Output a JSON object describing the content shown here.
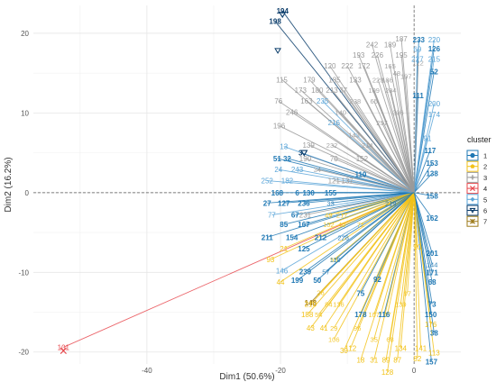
{
  "chart_data": {
    "type": "scatter",
    "title": "",
    "xlabel": "Dim1 (50.6%)",
    "ylabel": "Dim2 (16.2%)",
    "xlim": [
      -57,
      7
    ],
    "ylim": [
      -21.5,
      23.5
    ],
    "x_ticks": [
      -40,
      -20,
      0
    ],
    "y_ticks": [
      -20,
      -10,
      0,
      10,
      20
    ],
    "grid": true,
    "legend_position": "right",
    "legend_title": "cluster",
    "legend": [
      "1",
      "2",
      "3",
      "4",
      "5",
      "6",
      "7"
    ],
    "colors": {
      "1": "#1f78b4",
      "2": "#f2c218",
      "3": "#9a9a9a",
      "4": "#e7484d",
      "5": "#5aa5d8",
      "6": "#0b3d6b",
      "7": "#9e7b1a"
    },
    "points": [
      {
        "label": "194",
        "x": -19.7,
        "y": 22.8,
        "cluster": "6"
      },
      {
        "label": "198",
        "x": -20.8,
        "y": 21.5,
        "cluster": "6"
      },
      {
        "label": "101",
        "x": -52.5,
        "y": -19.4,
        "cluster": "4"
      },
      {
        "label": "148",
        "x": -15.5,
        "y": -13.8,
        "cluster": "7"
      },
      {
        "label": "3",
        "x": -17.0,
        "y": 5.0,
        "cluster": "6"
      },
      {
        "label": "51",
        "x": -20.5,
        "y": 4.3,
        "cluster": "1"
      },
      {
        "label": "32",
        "x": -19.0,
        "y": 4.3,
        "cluster": "1"
      },
      {
        "label": "168",
        "x": -20.5,
        "y": 0.0,
        "cluster": "1"
      },
      {
        "label": "6",
        "x": -17.5,
        "y": 0.0,
        "cluster": "1"
      },
      {
        "label": "130",
        "x": -15.8,
        "y": 0.0,
        "cluster": "1"
      },
      {
        "label": "155",
        "x": -12.5,
        "y": 0.0,
        "cluster": "1"
      },
      {
        "label": "27",
        "x": -22.0,
        "y": -1.3,
        "cluster": "1"
      },
      {
        "label": "127",
        "x": -19.5,
        "y": -1.3,
        "cluster": "1"
      },
      {
        "label": "236",
        "x": -16.5,
        "y": -1.3,
        "cluster": "1"
      },
      {
        "label": "67",
        "x": -17.8,
        "y": -2.8,
        "cluster": "1"
      },
      {
        "label": "85",
        "x": -19.5,
        "y": -4.0,
        "cluster": "1"
      },
      {
        "label": "167",
        "x": -16.5,
        "y": -4.0,
        "cluster": "1"
      },
      {
        "label": "211",
        "x": -22.0,
        "y": -5.6,
        "cluster": "1"
      },
      {
        "label": "154",
        "x": -18.3,
        "y": -5.6,
        "cluster": "1"
      },
      {
        "label": "212",
        "x": -14.0,
        "y": -5.6,
        "cluster": "1"
      },
      {
        "label": "125",
        "x": -16.5,
        "y": -7.0,
        "cluster": "1"
      },
      {
        "label": "239",
        "x": -16.3,
        "y": -9.9,
        "cluster": "1"
      },
      {
        "label": "199",
        "x": -17.5,
        "y": -11.0,
        "cluster": "1"
      },
      {
        "label": "50",
        "x": -14.5,
        "y": -11.0,
        "cluster": "1"
      },
      {
        "label": "75",
        "x": -8.0,
        "y": -12.6,
        "cluster": "1"
      },
      {
        "label": "178",
        "x": -8.0,
        "y": -15.3,
        "cluster": "1"
      },
      {
        "label": "116",
        "x": -4.5,
        "y": -15.3,
        "cluster": "1"
      },
      {
        "label": "92",
        "x": -5.5,
        "y": -10.9,
        "cluster": "1"
      },
      {
        "label": "110",
        "x": -8.0,
        "y": 2.3,
        "cluster": "1"
      },
      {
        "label": "233",
        "x": 0.7,
        "y": 19.2,
        "cluster": "1"
      },
      {
        "label": "126",
        "x": 3.0,
        "y": 18.1,
        "cluster": "1"
      },
      {
        "label": "52",
        "x": 3.0,
        "y": 15.2,
        "cluster": "1"
      },
      {
        "label": "111",
        "x": 0.6,
        "y": 12.2,
        "cluster": "1"
      },
      {
        "label": "117",
        "x": 2.4,
        "y": 5.3,
        "cluster": "1"
      },
      {
        "label": "153",
        "x": 2.7,
        "y": 3.7,
        "cluster": "1"
      },
      {
        "label": "138",
        "x": 2.7,
        "y": 2.4,
        "cluster": "1"
      },
      {
        "label": "158",
        "x": 2.7,
        "y": -0.4,
        "cluster": "1"
      },
      {
        "label": "162",
        "x": 2.7,
        "y": -3.2,
        "cluster": "1"
      },
      {
        "label": "201",
        "x": 2.7,
        "y": -7.6,
        "cluster": "1"
      },
      {
        "label": "171",
        "x": 2.7,
        "y": -10.0,
        "cluster": "1"
      },
      {
        "label": "68",
        "x": 2.7,
        "y": -11.2,
        "cluster": "1"
      },
      {
        "label": "73",
        "x": 2.7,
        "y": -14.0,
        "cluster": "1"
      },
      {
        "label": "150",
        "x": 2.5,
        "y": -15.3,
        "cluster": "1"
      },
      {
        "label": "38",
        "x": 3.0,
        "y": -17.6,
        "cluster": "1"
      },
      {
        "label": "157",
        "x": 2.6,
        "y": -21.2,
        "cluster": "1"
      },
      {
        "label": "187",
        "x": -1.9,
        "y": 19.3,
        "cluster": "3"
      },
      {
        "label": "242",
        "x": -6.3,
        "y": 18.6,
        "cluster": "3"
      },
      {
        "label": "189",
        "x": -3.6,
        "y": 18.6,
        "cluster": "3"
      },
      {
        "label": "193",
        "x": -8.3,
        "y": 17.3,
        "cluster": "3"
      },
      {
        "label": "226",
        "x": -5.5,
        "y": 17.3,
        "cluster": "3"
      },
      {
        "label": "195",
        "x": -1.9,
        "y": 17.3,
        "cluster": "3"
      },
      {
        "label": "120",
        "x": -12.6,
        "y": 15.9,
        "cluster": "3"
      },
      {
        "label": "222",
        "x": -10.0,
        "y": 15.9,
        "cluster": "3"
      },
      {
        "label": "172",
        "x": -7.5,
        "y": 15.9,
        "cluster": "3"
      },
      {
        "label": "115",
        "x": -19.8,
        "y": 14.2,
        "cluster": "3"
      },
      {
        "label": "179",
        "x": -15.7,
        "y": 14.2,
        "cluster": "3"
      },
      {
        "label": "185",
        "x": -11.9,
        "y": 14.2,
        "cluster": "3"
      },
      {
        "label": "133",
        "x": -8.8,
        "y": 14.2,
        "cluster": "3"
      },
      {
        "label": "173",
        "x": -17.0,
        "y": 12.9,
        "cluster": "3"
      },
      {
        "label": "180",
        "x": -14.5,
        "y": 12.9,
        "cluster": "3"
      },
      {
        "label": "213",
        "x": -12.3,
        "y": 12.9,
        "cluster": "3"
      },
      {
        "label": "37",
        "x": -10.6,
        "y": 12.9,
        "cluster": "3"
      },
      {
        "label": "76",
        "x": -20.3,
        "y": 11.5,
        "cluster": "3"
      },
      {
        "label": "163",
        "x": -16.1,
        "y": 11.5,
        "cluster": "3"
      },
      {
        "label": "246",
        "x": -18.3,
        "y": 10.1,
        "cluster": "3"
      },
      {
        "label": "196",
        "x": -20.2,
        "y": 8.4,
        "cluster": "3"
      },
      {
        "label": "139",
        "x": -15.8,
        "y": 6.0,
        "cluster": "3"
      },
      {
        "label": "190",
        "x": -16.3,
        "y": 4.3,
        "cluster": "3"
      },
      {
        "label": "70",
        "x": -12.0,
        "y": 4.3,
        "cluster": "3"
      },
      {
        "label": "152",
        "x": -7.8,
        "y": 4.3,
        "cluster": "3"
      },
      {
        "label": "121",
        "x": -12.0,
        "y": 1.5,
        "cluster": "3"
      },
      {
        "label": "137",
        "x": -10.0,
        "y": 1.5,
        "cluster": "3"
      },
      {
        "label": "231",
        "x": -16.3,
        "y": -2.8,
        "cluster": "3"
      },
      {
        "label": "24",
        "x": -20.3,
        "y": 2.9,
        "cluster": "5"
      },
      {
        "label": "243",
        "x": -17.5,
        "y": 2.9,
        "cluster": "5"
      },
      {
        "label": "252",
        "x": -22.0,
        "y": 1.5,
        "cluster": "5"
      },
      {
        "label": "182",
        "x": -19.0,
        "y": 1.5,
        "cluster": "5"
      },
      {
        "label": "77",
        "x": -21.3,
        "y": -2.8,
        "cluster": "5"
      },
      {
        "label": "146",
        "x": -19.8,
        "y": -9.8,
        "cluster": "5"
      },
      {
        "label": "13",
        "x": -19.5,
        "y": 5.8,
        "cluster": "5"
      },
      {
        "label": "235",
        "x": -13.7,
        "y": 11.5,
        "cluster": "5"
      },
      {
        "label": "216",
        "x": -12.0,
        "y": 8.8,
        "cluster": "5"
      },
      {
        "label": "220",
        "x": 3.0,
        "y": 19.2,
        "cluster": "5"
      },
      {
        "label": "69",
        "x": 0.5,
        "y": 18.0,
        "cluster": "5"
      },
      {
        "label": "227",
        "x": 0.5,
        "y": 16.8,
        "cluster": "5"
      },
      {
        "label": "215",
        "x": 3.0,
        "y": 16.8,
        "cluster": "5"
      },
      {
        "label": "200",
        "x": 3.0,
        "y": 11.2,
        "cluster": "5"
      },
      {
        "label": "174",
        "x": 3.0,
        "y": 9.8,
        "cluster": "5"
      },
      {
        "label": "91",
        "x": 2.0,
        "y": 6.8,
        "cluster": "5"
      },
      {
        "label": "21",
        "x": -19.5,
        "y": -7.0,
        "cluster": "2"
      },
      {
        "label": "93",
        "x": -21.5,
        "y": -8.4,
        "cluster": "2"
      },
      {
        "label": "44",
        "x": -20.0,
        "y": -11.2,
        "cluster": "2"
      },
      {
        "label": "210",
        "x": -15.5,
        "y": -14.0,
        "cluster": "2"
      },
      {
        "label": "188",
        "x": -16.0,
        "y": -15.3,
        "cluster": "2"
      },
      {
        "label": "43",
        "x": -15.5,
        "y": -17.0,
        "cluster": "2"
      },
      {
        "label": "41",
        "x": -13.5,
        "y": -17.0,
        "cluster": "2"
      },
      {
        "label": "30",
        "x": -10.5,
        "y": -19.8,
        "cluster": "2"
      },
      {
        "label": "18",
        "x": -8.0,
        "y": -21.0,
        "cluster": "2"
      },
      {
        "label": "31",
        "x": -6.0,
        "y": -21.0,
        "cluster": "2"
      },
      {
        "label": "89",
        "x": -4.2,
        "y": -21.0,
        "cluster": "2"
      },
      {
        "label": "87",
        "x": -2.5,
        "y": -21.0,
        "cluster": "2"
      },
      {
        "label": "128",
        "x": -4.0,
        "y": -22.5,
        "cluster": "2"
      },
      {
        "label": "82",
        "x": 0.5,
        "y": -20.8,
        "cluster": "2"
      },
      {
        "label": "113",
        "x": 3.0,
        "y": -20.1,
        "cluster": "2"
      },
      {
        "label": "141",
        "x": 1.0,
        "y": -19.5,
        "cluster": "2"
      },
      {
        "label": "134",
        "x": -2.0,
        "y": -19.5,
        "cluster": "2"
      },
      {
        "label": "112",
        "x": -9.5,
        "y": -19.5,
        "cluster": "2"
      },
      {
        "label": "176",
        "x": 2.5,
        "y": -16.5,
        "cluster": "2"
      },
      {
        "label": "90",
        "x": 0.5,
        "y": -6.8,
        "cluster": "2"
      }
    ],
    "background_labels": [
      {
        "label": "122",
        "x": 0.6,
        "y": 16.3,
        "cluster": "3"
      },
      {
        "label": "165",
        "x": -3.6,
        "y": 15.9,
        "cluster": "3"
      },
      {
        "label": "48",
        "x": -2.6,
        "y": 15.0,
        "cluster": "3"
      },
      {
        "label": "197",
        "x": -1.2,
        "y": 14.6,
        "cluster": "3"
      },
      {
        "label": "229",
        "x": -5.4,
        "y": 14.2,
        "cluster": "3"
      },
      {
        "label": "186",
        "x": -4.0,
        "y": 14.2,
        "cluster": "3"
      },
      {
        "label": "109",
        "x": -6.0,
        "y": 12.9,
        "cluster": "3"
      },
      {
        "label": "204",
        "x": -3.5,
        "y": 12.9,
        "cluster": "3"
      },
      {
        "label": "238",
        "x": -8.8,
        "y": 11.5,
        "cluster": "3"
      },
      {
        "label": "65",
        "x": -6.0,
        "y": 11.5,
        "cluster": "3"
      },
      {
        "label": "206",
        "x": -2.4,
        "y": 10.1,
        "cluster": "3"
      },
      {
        "label": "140",
        "x": -11.0,
        "y": 10.1,
        "cluster": "3"
      },
      {
        "label": "257",
        "x": -4.8,
        "y": 8.8,
        "cluster": "3"
      },
      {
        "label": "143",
        "x": -9.0,
        "y": 7.3,
        "cluster": "3"
      },
      {
        "label": "214",
        "x": -7.0,
        "y": 6.0,
        "cluster": "3"
      },
      {
        "label": "232",
        "x": -12.3,
        "y": 6.0,
        "cluster": "3"
      },
      {
        "label": "34",
        "x": -14.5,
        "y": 2.9,
        "cluster": "3"
      },
      {
        "label": "49",
        "x": -12.8,
        "y": -2.8,
        "cluster": "2"
      },
      {
        "label": "217",
        "x": -10.8,
        "y": -2.8,
        "cluster": "2"
      },
      {
        "label": "102",
        "x": -12.8,
        "y": -4.0,
        "cluster": "2"
      },
      {
        "label": "40",
        "x": -10.8,
        "y": -4.0,
        "cluster": "2"
      },
      {
        "label": "71",
        "x": -8.0,
        "y": -4.0,
        "cluster": "2"
      },
      {
        "label": "228",
        "x": -10.6,
        "y": -5.6,
        "cluster": "1"
      },
      {
        "label": "53",
        "x": -12.0,
        "y": -8.4,
        "cluster": "2"
      },
      {
        "label": "119",
        "x": -11.8,
        "y": -8.4,
        "cluster": "1"
      },
      {
        "label": "57",
        "x": -13.2,
        "y": -9.9,
        "cluster": "1"
      },
      {
        "label": "26",
        "x": -14.0,
        "y": -12.5,
        "cluster": "2"
      },
      {
        "label": "84",
        "x": -12.8,
        "y": -14.0,
        "cluster": "2"
      },
      {
        "label": "136",
        "x": -11.3,
        "y": -14.0,
        "cluster": "2"
      },
      {
        "label": "54",
        "x": -14.3,
        "y": -15.3,
        "cluster": "2"
      },
      {
        "label": "29",
        "x": -12.0,
        "y": -17.0,
        "cluster": "2"
      },
      {
        "label": "106",
        "x": -12.0,
        "y": -18.4,
        "cluster": "2"
      },
      {
        "label": "96",
        "x": -8.5,
        "y": -17.0,
        "cluster": "2"
      },
      {
        "label": "35",
        "x": -6.0,
        "y": -18.4,
        "cluster": "2"
      },
      {
        "label": "68",
        "x": -3.6,
        "y": -18.4,
        "cluster": "2"
      },
      {
        "label": "107",
        "x": -6.0,
        "y": -15.3,
        "cluster": "2"
      },
      {
        "label": "47",
        "x": -4.0,
        "y": -15.3,
        "cluster": "2"
      },
      {
        "label": "139",
        "x": -2.0,
        "y": -14.0,
        "cluster": "2"
      },
      {
        "label": "97",
        "x": -1.0,
        "y": -12.6,
        "cluster": "2"
      },
      {
        "label": "33",
        "x": -12.5,
        "y": -1.3,
        "cluster": "1"
      },
      {
        "label": "219",
        "x": -3.5,
        "y": -1.3,
        "cluster": "1"
      },
      {
        "label": "144",
        "x": 2.7,
        "y": -9.0,
        "cluster": "1"
      }
    ]
  }
}
